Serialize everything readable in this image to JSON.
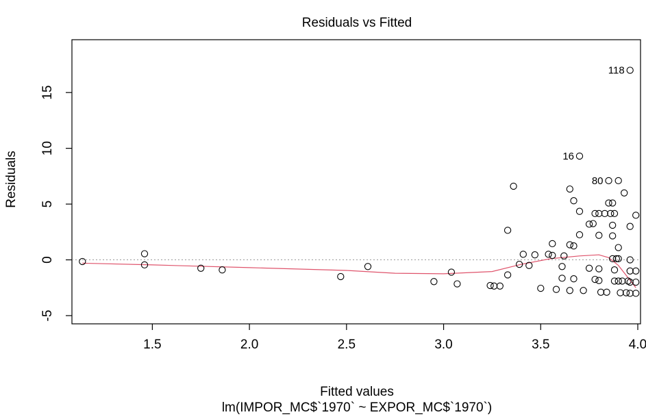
{
  "chart_data": {
    "type": "scatter",
    "title": "Residuals vs Fitted",
    "xlabel": "Fitted values",
    "ylabel": "Residuals",
    "subtitle": "lm(IMPOR_MC$`1970` ~ EXPOR_MC$`1970`)",
    "xlim": [
      1.1,
      4.0
    ],
    "ylim": [
      -5,
      19
    ],
    "xticks": [
      1.5,
      2.0,
      2.5,
      3.0,
      3.5,
      4.0
    ],
    "xtick_labels": [
      "1.5",
      "2.0",
      "2.5",
      "3.0",
      "3.5",
      "4.0"
    ],
    "yticks": [
      -5,
      0,
      5,
      10,
      15
    ],
    "ytick_labels": [
      "-5",
      "0",
      "5",
      "10",
      "15"
    ],
    "reference_line_y": 0,
    "smooth_color": "#DF536B",
    "point_color": "#000000",
    "points": [
      {
        "x": 1.14,
        "y": -0.15
      },
      {
        "x": 1.46,
        "y": 0.55
      },
      {
        "x": 1.46,
        "y": -0.45
      },
      {
        "x": 1.75,
        "y": -0.75
      },
      {
        "x": 1.86,
        "y": -0.9
      },
      {
        "x": 2.47,
        "y": -1.5
      },
      {
        "x": 2.61,
        "y": -0.6
      },
      {
        "x": 2.95,
        "y": -1.95
      },
      {
        "x": 3.04,
        "y": -1.1
      },
      {
        "x": 3.07,
        "y": -2.15
      },
      {
        "x": 3.24,
        "y": -2.3
      },
      {
        "x": 3.26,
        "y": -2.35
      },
      {
        "x": 3.29,
        "y": -2.35
      },
      {
        "x": 3.33,
        "y": 2.65
      },
      {
        "x": 3.33,
        "y": -1.35
      },
      {
        "x": 3.36,
        "y": 6.6
      },
      {
        "x": 3.39,
        "y": -0.4
      },
      {
        "x": 3.41,
        "y": 0.5
      },
      {
        "x": 3.44,
        "y": -0.5
      },
      {
        "x": 3.47,
        "y": 0.45
      },
      {
        "x": 3.5,
        "y": -2.55
      },
      {
        "x": 3.54,
        "y": 0.5
      },
      {
        "x": 3.56,
        "y": 1.45
      },
      {
        "x": 3.56,
        "y": 0.4
      },
      {
        "x": 3.58,
        "y": -2.65
      },
      {
        "x": 3.61,
        "y": -0.6
      },
      {
        "x": 3.61,
        "y": -1.65
      },
      {
        "x": 3.62,
        "y": 0.35
      },
      {
        "x": 3.65,
        "y": 6.35
      },
      {
        "x": 3.65,
        "y": 1.35
      },
      {
        "x": 3.65,
        "y": -2.75
      },
      {
        "x": 3.67,
        "y": 5.3
      },
      {
        "x": 3.67,
        "y": 1.25
      },
      {
        "x": 3.67,
        "y": -1.7
      },
      {
        "x": 3.7,
        "y": 9.3
      },
      {
        "x": 3.7,
        "y": 4.35
      },
      {
        "x": 3.7,
        "y": 2.25
      },
      {
        "x": 3.72,
        "y": -2.75
      },
      {
        "x": 3.75,
        "y": 3.2
      },
      {
        "x": 3.75,
        "y": -0.75
      },
      {
        "x": 3.77,
        "y": 3.25
      },
      {
        "x": 3.78,
        "y": 4.15
      },
      {
        "x": 3.78,
        "y": -1.75
      },
      {
        "x": 3.8,
        "y": 4.15
      },
      {
        "x": 3.8,
        "y": 2.2
      },
      {
        "x": 3.8,
        "y": -0.8
      },
      {
        "x": 3.8,
        "y": -1.85
      },
      {
        "x": 3.81,
        "y": -2.9
      },
      {
        "x": 3.83,
        "y": 4.15
      },
      {
        "x": 3.84,
        "y": -2.9
      },
      {
        "x": 3.85,
        "y": 7.1
      },
      {
        "x": 3.85,
        "y": 5.1
      },
      {
        "x": 3.86,
        "y": 4.15
      },
      {
        "x": 3.87,
        "y": 5.1
      },
      {
        "x": 3.87,
        "y": 3.1
      },
      {
        "x": 3.87,
        "y": 2.15
      },
      {
        "x": 3.87,
        "y": 0.1
      },
      {
        "x": 3.88,
        "y": 4.15
      },
      {
        "x": 3.88,
        "y": -0.9
      },
      {
        "x": 3.88,
        "y": -1.9
      },
      {
        "x": 3.89,
        "y": 0.1
      },
      {
        "x": 3.9,
        "y": 7.1
      },
      {
        "x": 3.9,
        "y": 1.1
      },
      {
        "x": 3.9,
        "y": 0.1
      },
      {
        "x": 3.9,
        "y": -1.9
      },
      {
        "x": 3.91,
        "y": -2.95
      },
      {
        "x": 3.92,
        "y": -1.9
      },
      {
        "x": 3.93,
        "y": 6.0
      },
      {
        "x": 3.94,
        "y": -2.95
      },
      {
        "x": 3.95,
        "y": -1.9
      },
      {
        "x": 3.96,
        "y": 17.0
      },
      {
        "x": 3.96,
        "y": 3.0
      },
      {
        "x": 3.96,
        "y": 0.0
      },
      {
        "x": 3.96,
        "y": -1.0
      },
      {
        "x": 3.96,
        "y": -2.0
      },
      {
        "x": 3.96,
        "y": -3.0
      },
      {
        "x": 3.99,
        "y": 4.0
      },
      {
        "x": 3.99,
        "y": -1.0
      },
      {
        "x": 3.99,
        "y": -2.0
      },
      {
        "x": 3.99,
        "y": -3.0
      }
    ],
    "labeled_points": [
      {
        "label": "118",
        "x": 3.96,
        "y": 17.0
      },
      {
        "label": "16",
        "x": 3.7,
        "y": 9.3
      },
      {
        "label": "80",
        "x": 3.85,
        "y": 7.1
      }
    ],
    "smooth_line": [
      {
        "x": 1.14,
        "y": -0.3
      },
      {
        "x": 1.5,
        "y": -0.45
      },
      {
        "x": 2.0,
        "y": -0.7
      },
      {
        "x": 2.5,
        "y": -0.95
      },
      {
        "x": 2.75,
        "y": -1.2
      },
      {
        "x": 3.0,
        "y": -1.25
      },
      {
        "x": 3.25,
        "y": -1.05
      },
      {
        "x": 3.4,
        "y": -0.4
      },
      {
        "x": 3.55,
        "y": 0.1
      },
      {
        "x": 3.7,
        "y": 0.35
      },
      {
        "x": 3.8,
        "y": 0.45
      },
      {
        "x": 3.85,
        "y": 0.2
      },
      {
        "x": 3.9,
        "y": -0.5
      },
      {
        "x": 3.95,
        "y": -1.6
      },
      {
        "x": 3.99,
        "y": -2.5
      }
    ]
  }
}
